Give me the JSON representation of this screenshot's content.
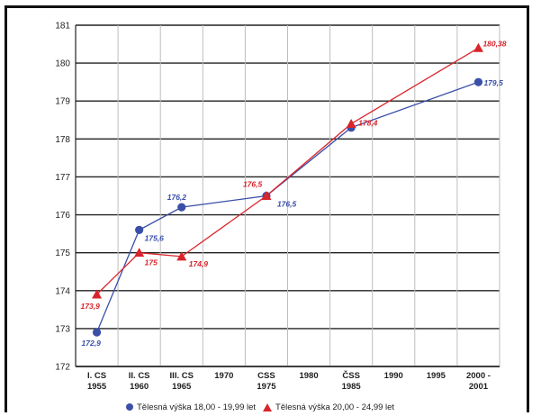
{
  "chart_data": {
    "type": "line",
    "categories": [
      "I. CS\n1955",
      "II. CS\n1960",
      "III. CS\n1965",
      "1970",
      "CSS\n1975",
      "1980",
      "ČSS\n1985",
      "1990",
      "1995",
      "2000 -\n2001"
    ],
    "ylim": [
      172,
      181
    ],
    "yticks": [
      172,
      173,
      174,
      175,
      176,
      177,
      178,
      179,
      180,
      181
    ],
    "grid": "horizontal",
    "legend_position": "bottom",
    "series": [
      {
        "name": "Tělesná výška 18,00 - 19,99 let",
        "marker": "circle",
        "color": "#3a4fa8",
        "points": [
          {
            "category_index": 0,
            "value": 172.9,
            "label": "172,9"
          },
          {
            "category_index": 1,
            "value": 175.6,
            "label": "175,6"
          },
          {
            "category_index": 2,
            "value": 176.2,
            "label": "176,2"
          },
          {
            "category_index": 4,
            "value": 176.5,
            "label": "176,5"
          },
          {
            "category_index": 6,
            "value": 178.3,
            "label": ""
          },
          {
            "category_index": 9,
            "value": 179.5,
            "label": "179,5"
          }
        ]
      },
      {
        "name": "Tělesná výška 20,00 - 24,99 let",
        "marker": "triangle",
        "color": "#d9242b",
        "points": [
          {
            "category_index": 0,
            "value": 173.9,
            "label": "173,9"
          },
          {
            "category_index": 1,
            "value": 175.0,
            "label": "175"
          },
          {
            "category_index": 2,
            "value": 174.9,
            "label": "174,9"
          },
          {
            "category_index": 4,
            "value": 176.5,
            "label": "176,5"
          },
          {
            "category_index": 6,
            "value": 178.4,
            "label": "178,4"
          },
          {
            "category_index": 9,
            "value": 180.4,
            "label": "180,38"
          }
        ]
      }
    ]
  }
}
